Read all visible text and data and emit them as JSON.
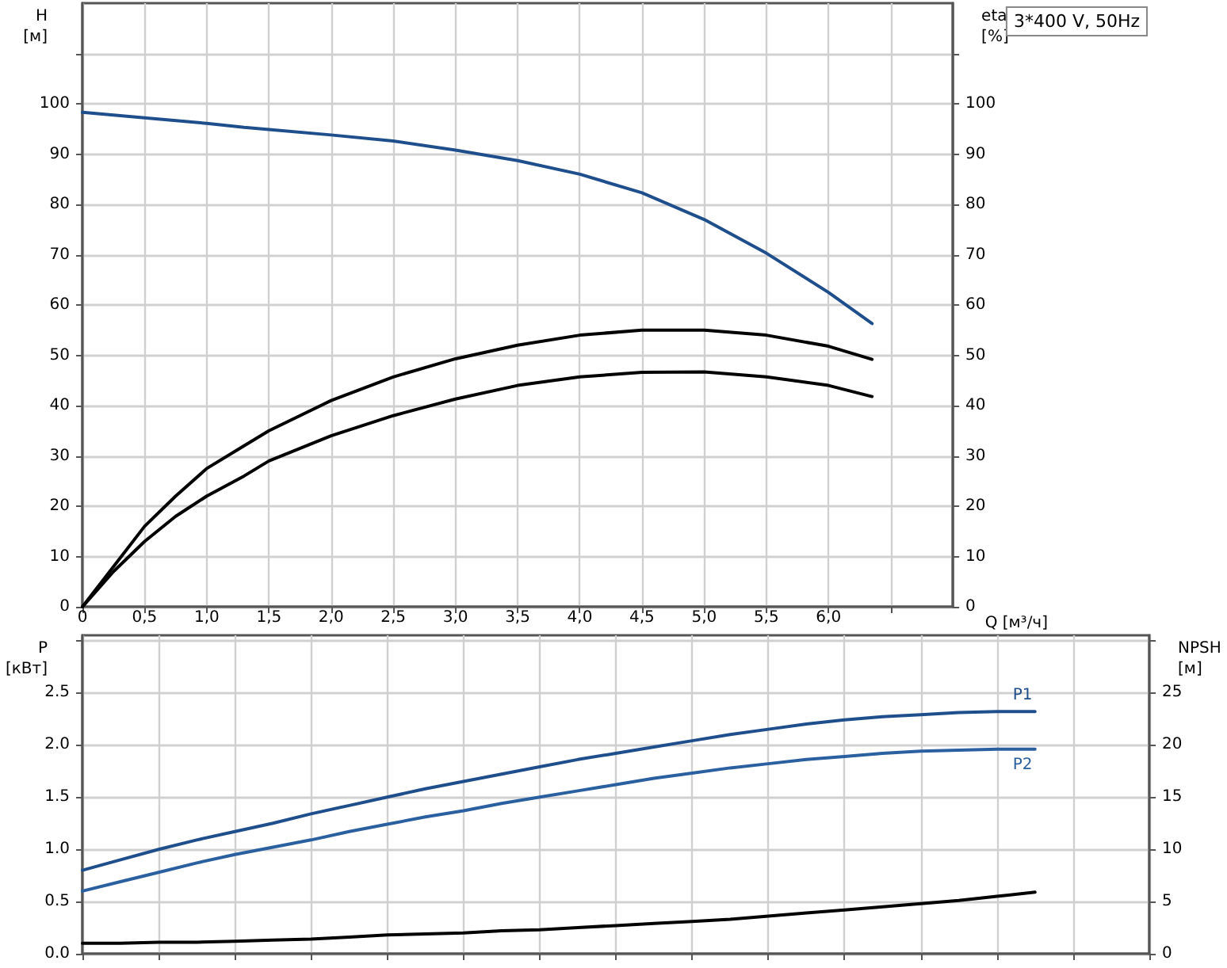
{
  "chart_data": [
    {
      "type": "line",
      "xlabel": "Q [м³/ч]",
      "ylabel": "H\n[м]",
      "y2label": "eta\n[%]",
      "annotations": [
        "3*400 V, 50Hz"
      ],
      "xlim": [
        0,
        7
      ],
      "xticks": [
        {
          "value": 0,
          "label": "0"
        },
        {
          "value": 0.5,
          "label": "0,5"
        },
        {
          "value": 1,
          "label": "1,0"
        },
        {
          "value": 1.5,
          "label": "1,5"
        },
        {
          "value": 2,
          "label": "2,0"
        },
        {
          "value": 2.5,
          "label": "2,5"
        },
        {
          "value": 3,
          "label": "3,0"
        },
        {
          "value": 3.5,
          "label": "3,5"
        },
        {
          "value": 4,
          "label": "4,0"
        },
        {
          "value": 4.5,
          "label": "4,5"
        },
        {
          "value": 5,
          "label": "5,0"
        },
        {
          "value": 5.5,
          "label": "5,5"
        },
        {
          "value": 6,
          "label": "6,0"
        },
        {
          "value": 6.5,
          "label": null
        }
      ],
      "ylim": [
        0,
        120
      ],
      "yticks": [
        0,
        10,
        20,
        30,
        40,
        50,
        60,
        70,
        80,
        90,
        100,
        {
          "value": 110,
          "label": null
        }
      ],
      "y2lim": [
        0,
        120
      ],
      "y2ticks": [
        0,
        10,
        20,
        30,
        40,
        50,
        60,
        70,
        80,
        90,
        100,
        {
          "value": 110,
          "label": null
        }
      ],
      "grid": true,
      "legend": false,
      "marker": "none",
      "line_style": "solid",
      "series": [
        {
          "color": "#1f4e8c",
          "x": [
            0,
            0.5,
            1,
            1.3,
            1.5,
            2,
            2.5,
            3,
            3.5,
            4,
            4.5,
            5,
            5.5,
            6,
            6.35
          ],
          "values": [
            98.3,
            97.2,
            96.1,
            95.3,
            94.9,
            93.8,
            92.6,
            90.8,
            88.7,
            86,
            82.3,
            77,
            70.3,
            62.5,
            56.3
          ]
        },
        {
          "color": "#000000",
          "axis": "y2",
          "x": [
            0,
            0.25,
            0.5,
            0.75,
            1,
            1.3,
            1.5,
            2,
            2.5,
            3,
            3.5,
            4,
            4.5,
            5,
            5.5,
            6,
            6.35
          ],
          "values": [
            0,
            8,
            16,
            22,
            27.5,
            32,
            35,
            41,
            45.7,
            49.3,
            52,
            54,
            55,
            55,
            54,
            51.8,
            49.2
          ]
        },
        {
          "color": "#000000",
          "axis": "y2",
          "x": [
            0,
            0.25,
            0.5,
            0.75,
            1,
            1.3,
            1.5,
            2,
            2.5,
            3,
            3.5,
            4,
            4.5,
            5,
            5.5,
            6,
            6.35
          ],
          "values": [
            0,
            7,
            13,
            18,
            22,
            26,
            29,
            34,
            38,
            41.3,
            44,
            45.7,
            46.6,
            46.7,
            45.7,
            44,
            41.8
          ]
        }
      ]
    },
    {
      "type": "line",
      "ylabel": "P\n[кВт]",
      "y2label": "NPSH\n[м]",
      "categories": [
        null,
        null,
        null,
        null,
        null,
        null,
        null,
        null,
        null,
        null,
        null,
        null,
        null,
        null,
        null,
        null,
        null,
        null,
        null,
        null,
        null,
        null,
        null,
        null,
        null,
        null,
        null,
        null,
        null
      ],
      "ylim": [
        0,
        3.05
      ],
      "yticks": [
        {
          "value": 0,
          "label": "0.0"
        },
        {
          "value": 0.5,
          "label": "0.5"
        },
        {
          "value": 1,
          "label": "1.0"
        },
        {
          "value": 1.5,
          "label": "1.5"
        },
        {
          "value": 2,
          "label": "2.0"
        },
        {
          "value": 2.5,
          "label": "2.5"
        },
        {
          "value": 3,
          "label": null
        }
      ],
      "y2lim": [
        0,
        30.5
      ],
      "y2ticks": [
        0,
        5,
        10,
        15,
        20,
        25,
        {
          "value": 30,
          "label": null
        }
      ],
      "grid": true,
      "legend": false,
      "marker": "none",
      "line_style": "solid",
      "series": [
        {
          "name": "P1",
          "color": "#1f4e8c",
          "values": [
            0.8,
            0.9,
            1.0,
            1.09,
            1.17,
            1.25,
            1.34,
            1.42,
            1.5,
            1.58,
            1.65,
            1.72,
            1.79,
            1.86,
            1.92,
            1.98,
            2.04,
            2.1,
            2.15,
            2.2,
            2.24,
            2.27,
            2.29,
            2.31,
            2.32,
            2.32,
            null,
            null,
            null
          ]
        },
        {
          "name": "P2",
          "color": "#2a5fa0",
          "values": [
            0.6,
            0.69,
            0.78,
            0.87,
            0.95,
            1.02,
            1.09,
            1.17,
            1.24,
            1.31,
            1.37,
            1.44,
            1.5,
            1.56,
            1.62,
            1.68,
            1.73,
            1.78,
            1.82,
            1.86,
            1.89,
            1.92,
            1.94,
            1.95,
            1.96,
            1.96,
            null,
            null,
            null
          ]
        },
        {
          "color": "#000000",
          "axis": "y2",
          "values": [
            1.0,
            1.0,
            1.1,
            1.1,
            1.2,
            1.3,
            1.4,
            1.6,
            1.8,
            1.9,
            2.0,
            2.2,
            2.3,
            2.5,
            2.7,
            2.9,
            3.1,
            3.3,
            3.6,
            3.9,
            4.2,
            4.5,
            4.8,
            5.1,
            5.5,
            5.9,
            null,
            null,
            null
          ]
        }
      ]
    }
  ]
}
